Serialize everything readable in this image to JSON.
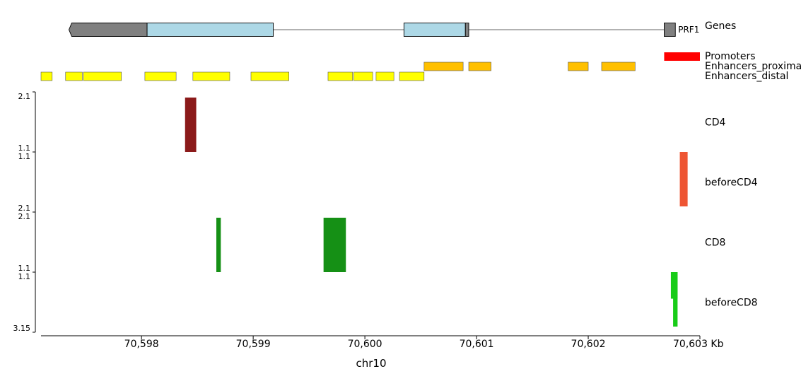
{
  "colors": {
    "gene_coding": "#add8e6",
    "gene_noncoding": "#808080",
    "promoter": "#ff0000",
    "enhancer_proximal": "#ffc000",
    "enhancer_distal": "#ffff00",
    "CD4": "#8b1a1a",
    "beforeCD4": "#ee5533",
    "CD8": "#159015",
    "beforeCD8": "#18cc18"
  },
  "chart_data": {
    "type": "genome-track",
    "xlabel": "chr10",
    "x_unit": "Kb",
    "xlim": [
      70597.1,
      70603.0
    ],
    "x_ticks": [
      70598,
      70599,
      70600,
      70601,
      70602,
      70603
    ],
    "x_tick_labels": [
      "70,598",
      "70,599",
      "70,600",
      "70,601",
      "70,602",
      "70,603 Kb"
    ],
    "gene_track": {
      "label": "Genes",
      "gene_name": "PRF1",
      "segments": [
        {
          "start": 70597.35,
          "end": 70598.05,
          "kind": "noncoding",
          "arrow": "left"
        },
        {
          "start": 70598.05,
          "end": 70599.18,
          "kind": "coding"
        },
        {
          "start": 70600.35,
          "end": 70600.9,
          "kind": "coding"
        },
        {
          "start": 70600.9,
          "end": 70600.93,
          "kind": "noncoding"
        },
        {
          "start": 70602.68,
          "end": 70602.78,
          "kind": "noncoding"
        }
      ],
      "intron": [
        70599.18,
        70602.68
      ]
    },
    "annotation_tracks": [
      {
        "label": "Promoters",
        "color_key": "promoter",
        "features": [
          [
            70602.68,
            70603.0
          ]
        ]
      },
      {
        "label": "Enhancers_proximal",
        "color_key": "enhancer_proximal",
        "features": [
          [
            70600.53,
            70600.88
          ],
          [
            70600.93,
            70601.13
          ],
          [
            70601.82,
            70602.0
          ],
          [
            70602.12,
            70602.42
          ]
        ]
      },
      {
        "label": "Enhancers_distal",
        "color_key": "enhancer_distal",
        "features": [
          [
            70597.1,
            70597.2
          ],
          [
            70597.32,
            70597.47
          ],
          [
            70597.48,
            70597.82
          ],
          [
            70598.03,
            70598.31
          ],
          [
            70598.46,
            70598.79
          ],
          [
            70598.98,
            70599.32
          ],
          [
            70599.67,
            70599.89
          ],
          [
            70599.9,
            70600.07
          ],
          [
            70600.1,
            70600.26
          ],
          [
            70600.31,
            70600.53
          ]
        ]
      }
    ],
    "signal_tracks": [
      {
        "label": "CD4",
        "color_key": "CD4",
        "ylim": [
          1.1,
          2.1
        ],
        "axis_top_label": "2.1",
        "axis_bottom_label": "1.1",
        "inverted": false,
        "bars": [
          {
            "start": 70598.39,
            "end": 70598.49,
            "value": 2.1
          }
        ]
      },
      {
        "label": "beforeCD4",
        "color_key": "beforeCD4",
        "ylim": [
          1.1,
          2.1
        ],
        "axis_top_label": "1.1",
        "axis_bottom_label": "2.1",
        "inverted": true,
        "bars": [
          {
            "start": 70602.82,
            "end": 70602.89,
            "value": 2.1
          }
        ]
      },
      {
        "label": "CD8",
        "color_key": "CD8",
        "ylim": [
          1.1,
          2.1
        ],
        "axis_top_label": "2.1",
        "axis_bottom_label": "1.1",
        "inverted": false,
        "bars": [
          {
            "start": 70598.67,
            "end": 70598.71,
            "value": 2.1
          },
          {
            "start": 70599.63,
            "end": 70599.83,
            "value": 2.1
          }
        ]
      },
      {
        "label": "beforeCD8",
        "color_key": "beforeCD8",
        "ylim": [
          1.1,
          3.15
        ],
        "axis_top_label": "1.1",
        "axis_bottom_label": "3.15",
        "inverted": true,
        "bars": [
          {
            "start": 70602.74,
            "end": 70602.8,
            "value": 2.1
          },
          {
            "start": 70602.76,
            "end": 70602.8,
            "value": 3.15
          }
        ]
      }
    ]
  }
}
